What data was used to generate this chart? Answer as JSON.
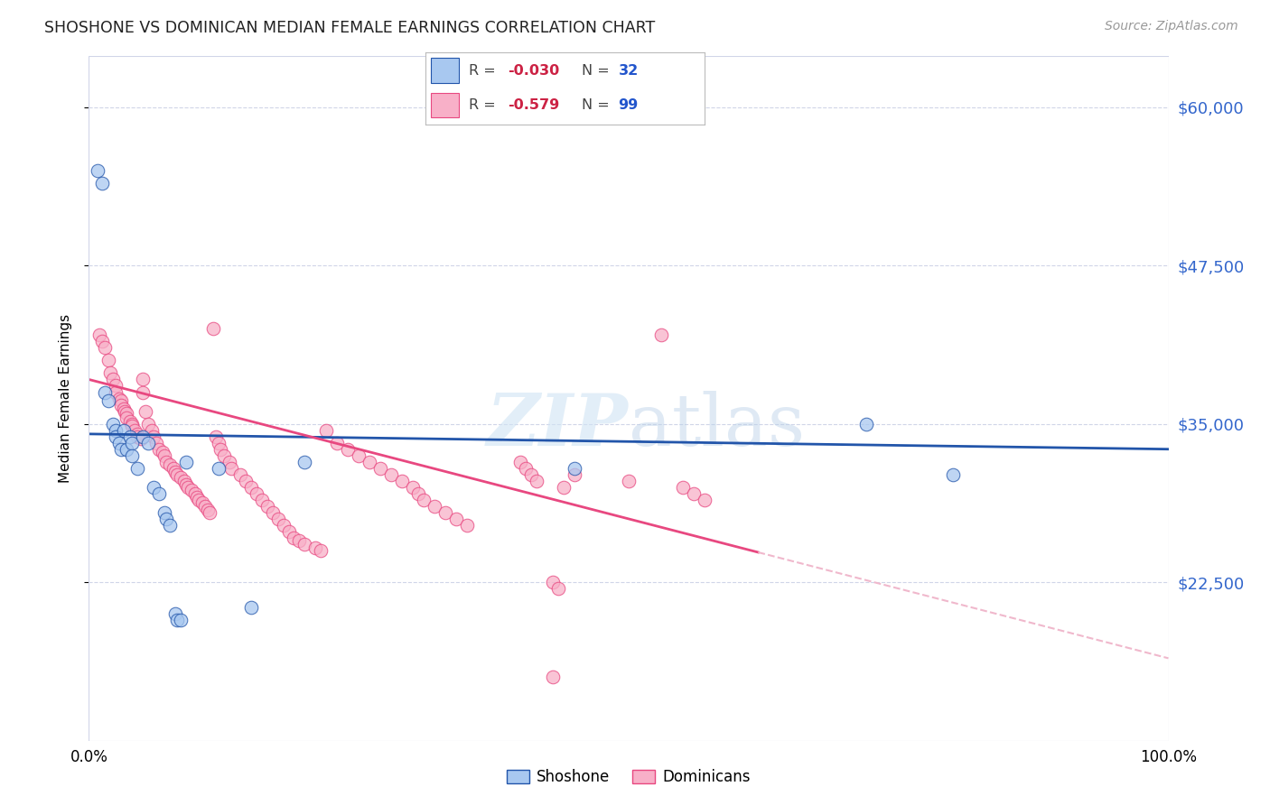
{
  "title": "SHOSHONE VS DOMINICAN MEDIAN FEMALE EARNINGS CORRELATION CHART",
  "source": "Source: ZipAtlas.com",
  "ylabel": "Median Female Earnings",
  "ytick_labels": [
    "$22,500",
    "$35,000",
    "$47,500",
    "$60,000"
  ],
  "ytick_values": [
    22500,
    35000,
    47500,
    60000
  ],
  "ymin": 10000,
  "ymax": 64000,
  "xmin": 0.0,
  "xmax": 1.0,
  "shoshone_color": "#a8c8f0",
  "dominican_color": "#f8b0c8",
  "shoshone_line_color": "#2255aa",
  "dominican_line_color": "#e84880",
  "dominican_dash_color": "#f0b8cc",
  "shoshone_R": -0.03,
  "shoshone_N": 32,
  "dominican_R": -0.579,
  "dominican_N": 99,
  "shoshone_points": [
    [
      0.008,
      55000
    ],
    [
      0.012,
      54000
    ],
    [
      0.015,
      37500
    ],
    [
      0.018,
      36800
    ],
    [
      0.022,
      35000
    ],
    [
      0.025,
      34500
    ],
    [
      0.025,
      34000
    ],
    [
      0.028,
      33500
    ],
    [
      0.03,
      33000
    ],
    [
      0.032,
      34500
    ],
    [
      0.035,
      33000
    ],
    [
      0.038,
      34000
    ],
    [
      0.04,
      33500
    ],
    [
      0.04,
      32500
    ],
    [
      0.045,
      31500
    ],
    [
      0.05,
      34000
    ],
    [
      0.055,
      33500
    ],
    [
      0.06,
      30000
    ],
    [
      0.065,
      29500
    ],
    [
      0.07,
      28000
    ],
    [
      0.072,
      27500
    ],
    [
      0.075,
      27000
    ],
    [
      0.08,
      20000
    ],
    [
      0.082,
      19500
    ],
    [
      0.085,
      19500
    ],
    [
      0.09,
      32000
    ],
    [
      0.12,
      31500
    ],
    [
      0.15,
      20500
    ],
    [
      0.2,
      32000
    ],
    [
      0.45,
      31500
    ],
    [
      0.72,
      35000
    ],
    [
      0.8,
      31000
    ]
  ],
  "dominican_points": [
    [
      0.01,
      42000
    ],
    [
      0.012,
      41500
    ],
    [
      0.015,
      41000
    ],
    [
      0.018,
      40000
    ],
    [
      0.02,
      39000
    ],
    [
      0.022,
      38500
    ],
    [
      0.025,
      38000
    ],
    [
      0.025,
      37500
    ],
    [
      0.028,
      37000
    ],
    [
      0.03,
      36800
    ],
    [
      0.03,
      36500
    ],
    [
      0.032,
      36200
    ],
    [
      0.033,
      36000
    ],
    [
      0.035,
      35800
    ],
    [
      0.035,
      35500
    ],
    [
      0.038,
      35200
    ],
    [
      0.04,
      35000
    ],
    [
      0.04,
      34800
    ],
    [
      0.042,
      34500
    ],
    [
      0.045,
      34200
    ],
    [
      0.045,
      34000
    ],
    [
      0.048,
      33800
    ],
    [
      0.05,
      38500
    ],
    [
      0.05,
      37500
    ],
    [
      0.052,
      36000
    ],
    [
      0.055,
      35000
    ],
    [
      0.058,
      34500
    ],
    [
      0.06,
      34000
    ],
    [
      0.062,
      33500
    ],
    [
      0.065,
      33000
    ],
    [
      0.068,
      32800
    ],
    [
      0.07,
      32500
    ],
    [
      0.072,
      32000
    ],
    [
      0.075,
      31800
    ],
    [
      0.078,
      31500
    ],
    [
      0.08,
      31200
    ],
    [
      0.082,
      31000
    ],
    [
      0.085,
      30800
    ],
    [
      0.088,
      30500
    ],
    [
      0.09,
      30200
    ],
    [
      0.092,
      30000
    ],
    [
      0.095,
      29800
    ],
    [
      0.098,
      29500
    ],
    [
      0.1,
      29200
    ],
    [
      0.102,
      29000
    ],
    [
      0.105,
      28800
    ],
    [
      0.108,
      28500
    ],
    [
      0.11,
      28200
    ],
    [
      0.112,
      28000
    ],
    [
      0.115,
      42500
    ],
    [
      0.118,
      34000
    ],
    [
      0.12,
      33500
    ],
    [
      0.122,
      33000
    ],
    [
      0.125,
      32500
    ],
    [
      0.13,
      32000
    ],
    [
      0.132,
      31500
    ],
    [
      0.14,
      31000
    ],
    [
      0.145,
      30500
    ],
    [
      0.15,
      30000
    ],
    [
      0.155,
      29500
    ],
    [
      0.16,
      29000
    ],
    [
      0.165,
      28500
    ],
    [
      0.17,
      28000
    ],
    [
      0.175,
      27500
    ],
    [
      0.18,
      27000
    ],
    [
      0.185,
      26500
    ],
    [
      0.19,
      26000
    ],
    [
      0.195,
      25800
    ],
    [
      0.2,
      25500
    ],
    [
      0.21,
      25200
    ],
    [
      0.215,
      25000
    ],
    [
      0.22,
      34500
    ],
    [
      0.23,
      33500
    ],
    [
      0.24,
      33000
    ],
    [
      0.25,
      32500
    ],
    [
      0.26,
      32000
    ],
    [
      0.27,
      31500
    ],
    [
      0.28,
      31000
    ],
    [
      0.29,
      30500
    ],
    [
      0.3,
      30000
    ],
    [
      0.305,
      29500
    ],
    [
      0.31,
      29000
    ],
    [
      0.32,
      28500
    ],
    [
      0.33,
      28000
    ],
    [
      0.34,
      27500
    ],
    [
      0.35,
      27000
    ],
    [
      0.4,
      32000
    ],
    [
      0.405,
      31500
    ],
    [
      0.41,
      31000
    ],
    [
      0.415,
      30500
    ],
    [
      0.43,
      22500
    ],
    [
      0.435,
      22000
    ],
    [
      0.44,
      30000
    ],
    [
      0.45,
      31000
    ],
    [
      0.5,
      30500
    ],
    [
      0.53,
      42000
    ],
    [
      0.55,
      30000
    ],
    [
      0.56,
      29500
    ],
    [
      0.57,
      29000
    ],
    [
      0.43,
      15000
    ]
  ]
}
